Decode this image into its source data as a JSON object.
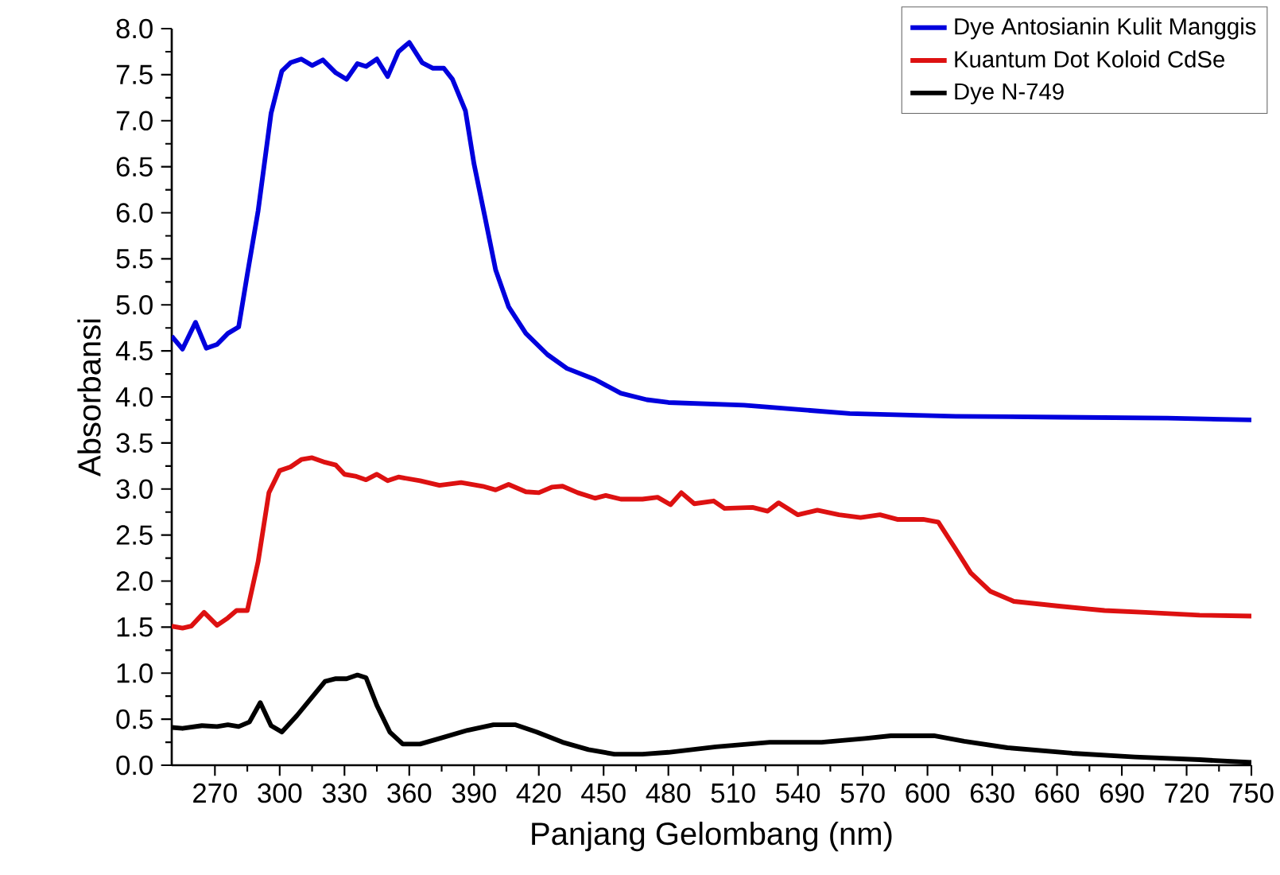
{
  "chart_data": {
    "type": "line",
    "xlabel": "Panjang Gelombang (nm)",
    "ylabel": "Absorbansi",
    "xlim": [
      250,
      750
    ],
    "ylim": [
      0,
      8
    ],
    "xticks": [
      270,
      300,
      330,
      360,
      390,
      420,
      450,
      480,
      510,
      540,
      570,
      600,
      630,
      660,
      690,
      720,
      750
    ],
    "yticks": [
      {
        "value": 0,
        "label": "0.0"
      },
      {
        "value": 0.5,
        "label": "0.5"
      },
      {
        "value": 1,
        "label": "1.0"
      },
      {
        "value": 1.5,
        "label": "1.5"
      },
      {
        "value": 2,
        "label": "2.0"
      },
      {
        "value": 2.5,
        "label": "2.5"
      },
      {
        "value": 3,
        "label": "3.0"
      },
      {
        "value": 3.5,
        "label": "3.5"
      },
      {
        "value": 4,
        "label": "4.0"
      },
      {
        "value": 4.5,
        "label": "4.5"
      },
      {
        "value": 5,
        "label": "5.0"
      },
      {
        "value": 5.5,
        "label": "5.5"
      },
      {
        "value": 6,
        "label": "6.0"
      },
      {
        "value": 6.5,
        "label": "6.5"
      },
      {
        "value": 7,
        "label": "7.0"
      },
      {
        "value": 7.5,
        "label": "7.5"
      },
      {
        "value": 8,
        "label": "8.0"
      }
    ],
    "legend": "top right",
    "line_style": "solid",
    "series": [
      {
        "name": "Dye Antosianin Kulit Manggis",
        "color": "#0000dd",
        "x": [
          250,
          255,
          261,
          266,
          271,
          276,
          281,
          285,
          290,
          296,
          301,
          305,
          310,
          315,
          320,
          326,
          331,
          336,
          340,
          345,
          350,
          355,
          360,
          366,
          371,
          376,
          380,
          386,
          390,
          395,
          400,
          406,
          414,
          424,
          433,
          446,
          458,
          470,
          480,
          515,
          564,
          613,
          662,
          711,
          750
        ],
        "values": [
          4.66,
          4.52,
          4.81,
          4.53,
          4.57,
          4.69,
          4.76,
          5.33,
          6.02,
          7.08,
          7.54,
          7.63,
          7.67,
          7.6,
          7.66,
          7.52,
          7.45,
          7.62,
          7.59,
          7.67,
          7.48,
          7.75,
          7.85,
          7.63,
          7.57,
          7.57,
          7.45,
          7.11,
          6.53,
          5.96,
          5.38,
          4.98,
          4.69,
          4.46,
          4.31,
          4.19,
          4.04,
          3.97,
          3.94,
          3.91,
          3.82,
          3.79,
          3.78,
          3.77,
          3.75
        ]
      },
      {
        "name": "Kuantum Dot Koloid CdSe",
        "color": "#dd1111",
        "x": [
          250,
          255,
          259,
          265,
          271,
          276,
          280,
          285,
          290,
          295,
          300,
          305,
          310,
          315,
          321,
          326,
          330,
          335,
          340,
          345,
          350,
          355,
          365,
          374,
          384,
          394,
          400,
          406,
          414,
          420,
          426,
          431,
          438,
          446,
          451,
          458,
          468,
          475,
          481,
          486,
          492,
          501,
          506,
          519,
          526,
          531,
          540,
          549,
          559,
          569,
          578,
          586,
          598,
          605,
          613,
          620,
          629,
          640,
          660,
          682,
          701,
          726,
          750
        ],
        "values": [
          1.51,
          1.49,
          1.51,
          1.66,
          1.52,
          1.6,
          1.68,
          1.68,
          2.21,
          2.96,
          3.2,
          3.24,
          3.32,
          3.34,
          3.29,
          3.26,
          3.16,
          3.14,
          3.1,
          3.16,
          3.09,
          3.13,
          3.09,
          3.04,
          3.07,
          3.03,
          2.99,
          3.05,
          2.97,
          2.96,
          3.02,
          3.03,
          2.96,
          2.9,
          2.93,
          2.89,
          2.89,
          2.91,
          2.83,
          2.96,
          2.84,
          2.87,
          2.79,
          2.8,
          2.76,
          2.85,
          2.72,
          2.77,
          2.72,
          2.69,
          2.72,
          2.67,
          2.67,
          2.64,
          2.35,
          2.09,
          1.89,
          1.78,
          1.73,
          1.68,
          1.66,
          1.63,
          1.62
        ]
      },
      {
        "name": "Dye N-749",
        "color": "#000000",
        "x": [
          250,
          255,
          264,
          271,
          276,
          281,
          286,
          291,
          296,
          301,
          308,
          315,
          321,
          326,
          331,
          336,
          340,
          345,
          351,
          357,
          365,
          374,
          387,
          399,
          409,
          419,
          431,
          443,
          455,
          468,
          480,
          502,
          527,
          551,
          571,
          583,
          603,
          617,
          637,
          667,
          696,
          726,
          750
        ],
        "values": [
          0.41,
          0.4,
          0.43,
          0.42,
          0.44,
          0.42,
          0.47,
          0.68,
          0.43,
          0.36,
          0.54,
          0.74,
          0.91,
          0.94,
          0.94,
          0.98,
          0.95,
          0.65,
          0.36,
          0.23,
          0.23,
          0.29,
          0.38,
          0.44,
          0.44,
          0.36,
          0.25,
          0.17,
          0.12,
          0.12,
          0.14,
          0.2,
          0.25,
          0.25,
          0.29,
          0.32,
          0.32,
          0.26,
          0.19,
          0.13,
          0.09,
          0.06,
          0.03
        ]
      }
    ]
  }
}
